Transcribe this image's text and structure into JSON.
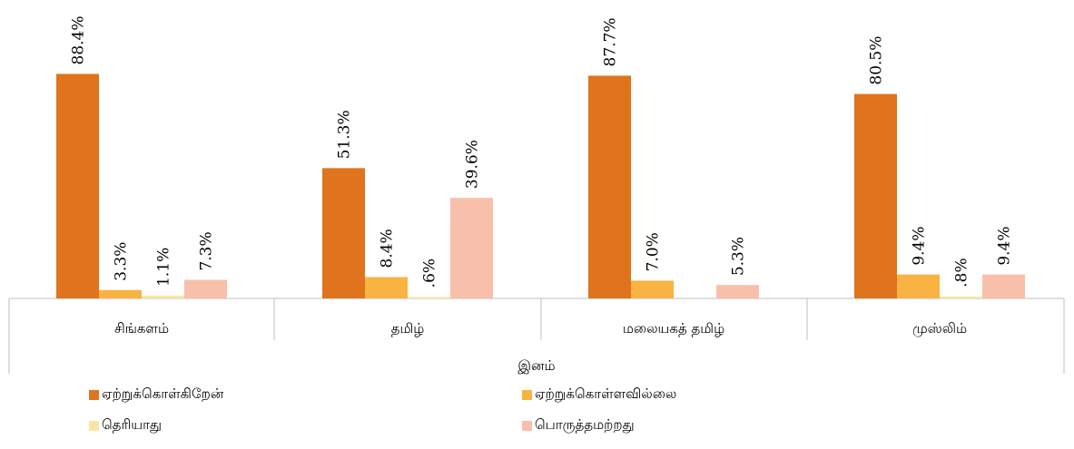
{
  "chart_data": {
    "type": "bar",
    "xlabel": "இனம்",
    "categories": [
      "சிங்களம்",
      "தமிழ்",
      "மலையகத்  தமிழ்",
      "முஸ்லிம்"
    ],
    "ylim": [
      0,
      100
    ],
    "grid": false,
    "legend_position": "bottom",
    "series": [
      {
        "name": "ஏற்றுக்கொள்கிறேன்",
        "color": "#df741c",
        "values": [
          88.4,
          51.3,
          87.7,
          80.5
        ],
        "labels": [
          "88.4%",
          "51.3%",
          "87.7%",
          "80.5%"
        ]
      },
      {
        "name": "ஏற்றுக்கொள்ளவில்லை",
        "color": "#f8b342",
        "values": [
          3.3,
          8.4,
          7.0,
          9.4
        ],
        "labels": [
          "3.3%",
          "8.4%",
          "7.0%",
          "9.4%"
        ]
      },
      {
        "name": "தெரியாது",
        "color": "#f8e6a2",
        "values": [
          1.1,
          0.6,
          null,
          0.8
        ],
        "labels": [
          "1.1%",
          ".6%",
          null,
          ".8%"
        ]
      },
      {
        "name": "பொருத்தமற்றது",
        "color": "#f8c0ab",
        "values": [
          7.3,
          39.6,
          5.3,
          9.4
        ],
        "labels": [
          "7.3%",
          "39.6%",
          "5.3%",
          "9.4%"
        ]
      }
    ]
  }
}
